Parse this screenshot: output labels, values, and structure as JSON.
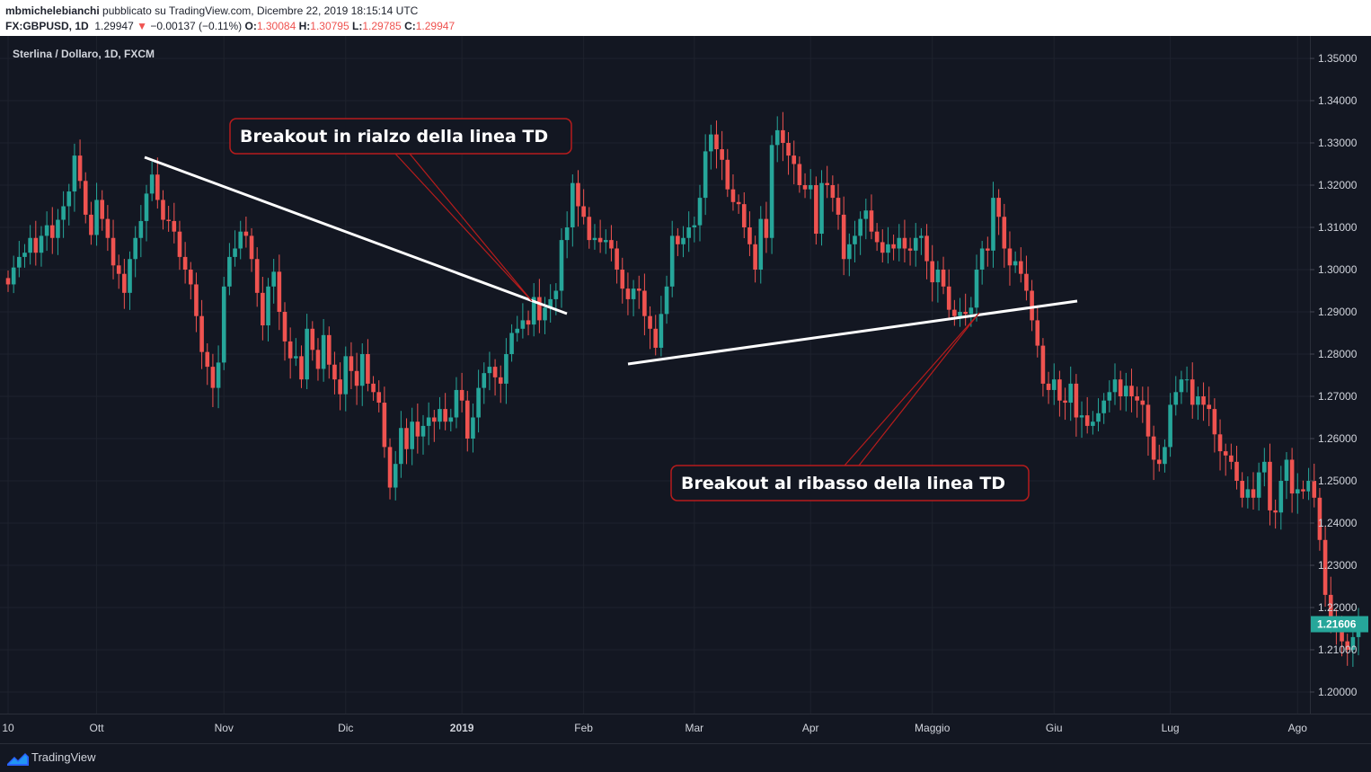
{
  "header": {
    "author": "mbmichelebianchi",
    "published_text": " pubblicato su TradingView.com, Dicembre 22, 2019 18:15:14 UTC",
    "symbol": "FX:GBPUSD, 1D",
    "last": "1.29947",
    "change": "−0.00137 (−0.11%)",
    "o_label": "O:",
    "o_value": "1.30084",
    "h_label": "H:",
    "h_value": "1.30795",
    "l_label": "L:",
    "l_value": "1.29785",
    "c_label": "C:",
    "c_value": "1.29947"
  },
  "footer": {
    "brand": "TradingView"
  },
  "chart_data": {
    "type": "candlestick",
    "title": "Sterlina / Dollaro, 1D, FXCM",
    "ylim": [
      1.195,
      1.355
    ],
    "y_ticks": [
      1.2,
      1.21,
      1.22,
      1.23,
      1.24,
      1.25,
      1.26,
      1.27,
      1.28,
      1.29,
      1.3,
      1.31,
      1.32,
      1.33,
      1.34,
      1.35
    ],
    "y_tick_labels": [
      "1.20000",
      "1.21000",
      "1.22000",
      "1.23000",
      "1.24000",
      "1.25000",
      "1.26000",
      "1.27000",
      "1.28000",
      "1.29000",
      "1.30000",
      "1.31000",
      "1.32000",
      "1.33000",
      "1.34000",
      "1.35000"
    ],
    "x_labels": [
      "10",
      "Ott",
      "Nov",
      "Dic",
      "2019",
      "Feb",
      "Mar",
      "Apr",
      "Maggio",
      "Giu",
      "Lug",
      "Ago"
    ],
    "x_label_bars": [
      0,
      16,
      39,
      61,
      82,
      104,
      124,
      145,
      167,
      189,
      210,
      233
    ],
    "last_price_label": "1.21606",
    "last_price": 1.21606,
    "colors": {
      "up": "#26a69a",
      "down": "#ef5350",
      "background": "#131722",
      "grid": "#1e222d",
      "trendline": "#ffffff",
      "callout_border": "#b71c1c",
      "last_price_bg": "#26a69a"
    },
    "closes": [
      1.2965,
      1.3005,
      1.303,
      1.304,
      1.3075,
      1.304,
      1.308,
      1.3105,
      1.3075,
      1.3118,
      1.315,
      1.3185,
      1.327,
      1.321,
      1.313,
      1.3082,
      1.3165,
      1.312,
      1.3075,
      1.301,
      1.299,
      1.2945,
      1.3025,
      1.3075,
      1.3115,
      1.318,
      1.3225,
      1.3165,
      1.3118,
      1.3115,
      1.309,
      1.303,
      1.3,
      1.2965,
      1.289,
      1.2805,
      1.277,
      1.272,
      1.278,
      1.296,
      1.303,
      1.305,
      1.309,
      1.308,
      1.3025,
      1.2945,
      1.2868,
      1.296,
      1.2995,
      1.29,
      1.283,
      1.279,
      1.2795,
      1.274,
      1.286,
      1.281,
      1.2765,
      1.2845,
      1.2775,
      1.274,
      1.2705,
      1.2795,
      1.276,
      1.2725,
      1.28,
      1.273,
      1.271,
      1.2685,
      1.258,
      1.2484,
      1.254,
      1.2625,
      1.2575,
      1.264,
      1.2605,
      1.263,
      1.265,
      1.264,
      1.267,
      1.264,
      1.265,
      1.2715,
      1.269,
      1.26,
      1.265,
      1.272,
      1.2755,
      1.277,
      1.2745,
      1.273,
      1.28,
      1.285,
      1.286,
      1.288,
      1.287,
      1.2935,
      1.288,
      1.291,
      1.293,
      1.295,
      1.307,
      1.31,
      1.3205,
      1.315,
      1.3125,
      1.307,
      1.3075,
      1.3065,
      1.307,
      1.305,
      1.3,
      1.2955,
      1.293,
      1.2955,
      1.295,
      1.289,
      1.286,
      1.2815,
      1.2895,
      1.296,
      1.308,
      1.306,
      1.3075,
      1.31,
      1.3105,
      1.317,
      1.328,
      1.332,
      1.3285,
      1.326,
      1.319,
      1.316,
      1.3155,
      1.31,
      1.306,
      1.3,
      1.312,
      1.3075,
      1.3295,
      1.333,
      1.33,
      1.327,
      1.325,
      1.32,
      1.319,
      1.32,
      1.3085,
      1.3205,
      1.32,
      1.317,
      1.313,
      1.3025,
      1.306,
      1.308,
      1.312,
      1.314,
      1.309,
      1.3065,
      1.304,
      1.306,
      1.305,
      1.3075,
      1.305,
      1.3045,
      1.3075,
      1.308,
      1.302,
      1.297,
      1.3,
      1.296,
      1.2905,
      1.289,
      1.29,
      1.2895,
      1.291,
      1.3,
      1.305,
      1.3045,
      1.317,
      1.3125,
      1.305,
      1.301,
      1.302,
      1.299,
      1.295,
      1.288,
      1.282,
      1.273,
      1.2715,
      1.274,
      1.269,
      1.2685,
      1.273,
      1.265,
      1.2655,
      1.263,
      1.264,
      1.266,
      1.269,
      1.271,
      1.274,
      1.27,
      1.2725,
      1.27,
      1.269,
      1.268,
      1.2605,
      1.255,
      1.254,
      1.258,
      1.268,
      1.271,
      1.274,
      1.274,
      1.268,
      1.27,
      1.268,
      1.267,
      1.261,
      1.257,
      1.256,
      1.2545,
      1.25,
      1.246,
      1.248,
      1.246,
      1.252,
      1.2545,
      1.243,
      1.2425,
      1.25,
      1.255,
      1.247,
      1.248,
      1.2475,
      1.25,
      1.246,
      1.236,
      1.223,
      1.217,
      1.2145,
      1.212,
      1.21,
      1.213,
      1.2161
    ]
  }
}
